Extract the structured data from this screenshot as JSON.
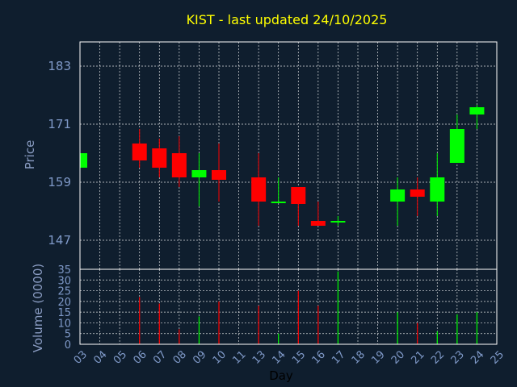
{
  "chart_data": [
    {
      "type": "candlestick",
      "title": "KIST - last updated 24/10/2025",
      "ylabel": "Price",
      "ylim": [
        141,
        188
      ],
      "yticks": [
        "147",
        "159",
        "171",
        "183"
      ],
      "grid": true,
      "categories": [
        "03",
        "04",
        "05",
        "06",
        "07",
        "08",
        "09",
        "10",
        "11",
        "13",
        "14",
        "15",
        "16",
        "17",
        "18",
        "19",
        "20",
        "21",
        "22",
        "23",
        "24",
        "25"
      ],
      "candles": [
        {
          "day": "03",
          "open": 162,
          "close": 165,
          "high": 165,
          "low": 162
        },
        {
          "day": "06",
          "open": 167,
          "close": 163.5,
          "high": 170,
          "low": 162
        },
        {
          "day": "07",
          "open": 166,
          "close": 162,
          "high": 168,
          "low": 160
        },
        {
          "day": "08",
          "open": 165,
          "close": 160,
          "high": 168.5,
          "low": 158
        },
        {
          "day": "09",
          "open": 160,
          "close": 161.5,
          "high": 165,
          "low": 154
        },
        {
          "day": "10",
          "open": 161.5,
          "close": 159.5,
          "high": 167,
          "low": 155
        },
        {
          "day": "13",
          "open": 160,
          "close": 155,
          "high": 165,
          "low": 150
        },
        {
          "day": "14",
          "open": 155,
          "close": 155,
          "high": 160,
          "low": 155
        },
        {
          "day": "15",
          "open": 158,
          "close": 154.5,
          "high": 158,
          "low": 150
        },
        {
          "day": "16",
          "open": 151,
          "close": 150,
          "high": 155,
          "low": 150
        },
        {
          "day": "17",
          "open": 151,
          "close": 151,
          "high": 152,
          "low": 150
        },
        {
          "day": "20",
          "open": 155,
          "close": 157.5,
          "high": 160,
          "low": 150
        },
        {
          "day": "21",
          "open": 157.5,
          "close": 156,
          "high": 160,
          "low": 152
        },
        {
          "day": "22",
          "open": 155,
          "close": 160,
          "high": 165,
          "low": 152
        },
        {
          "day": "23",
          "open": 163,
          "close": 170,
          "high": 173,
          "low": 163
        },
        {
          "day": "24",
          "open": 173,
          "close": 174.5,
          "high": 175,
          "low": 170
        }
      ]
    },
    {
      "type": "bar",
      "xlabel": "Day",
      "ylabel": "Volume (0000)",
      "ylim": [
        0,
        35
      ],
      "yticks": [
        "0",
        "5",
        "10",
        "15",
        "20",
        "25",
        "30",
        "35"
      ],
      "categories": [
        "03",
        "04",
        "05",
        "06",
        "07",
        "08",
        "09",
        "10",
        "11",
        "13",
        "14",
        "15",
        "16",
        "17",
        "18",
        "19",
        "20",
        "21",
        "22",
        "23",
        "24",
        "25"
      ],
      "bars": [
        {
          "day": "06",
          "value": 22,
          "direction": "down"
        },
        {
          "day": "07",
          "value": 19,
          "direction": "down"
        },
        {
          "day": "08",
          "value": 7,
          "direction": "down"
        },
        {
          "day": "09",
          "value": 13,
          "direction": "up"
        },
        {
          "day": "10",
          "value": 20,
          "direction": "down"
        },
        {
          "day": "13",
          "value": 18,
          "direction": "down"
        },
        {
          "day": "14",
          "value": 5,
          "direction": "up"
        },
        {
          "day": "15",
          "value": 25,
          "direction": "down"
        },
        {
          "day": "16",
          "value": 18,
          "direction": "down"
        },
        {
          "day": "17",
          "value": 34,
          "direction": "up"
        },
        {
          "day": "20",
          "value": 15,
          "direction": "up"
        },
        {
          "day": "21",
          "value": 10,
          "direction": "down"
        },
        {
          "day": "22",
          "value": 6,
          "direction": "up"
        },
        {
          "day": "23",
          "value": 14,
          "direction": "up"
        },
        {
          "day": "24",
          "value": 15,
          "direction": "up"
        }
      ]
    }
  ],
  "colors": {
    "background": "#0f1e2e",
    "up": "#00ff00",
    "down": "#ff0000",
    "title": "#ffff00",
    "axis_text": "#7f99c8"
  }
}
